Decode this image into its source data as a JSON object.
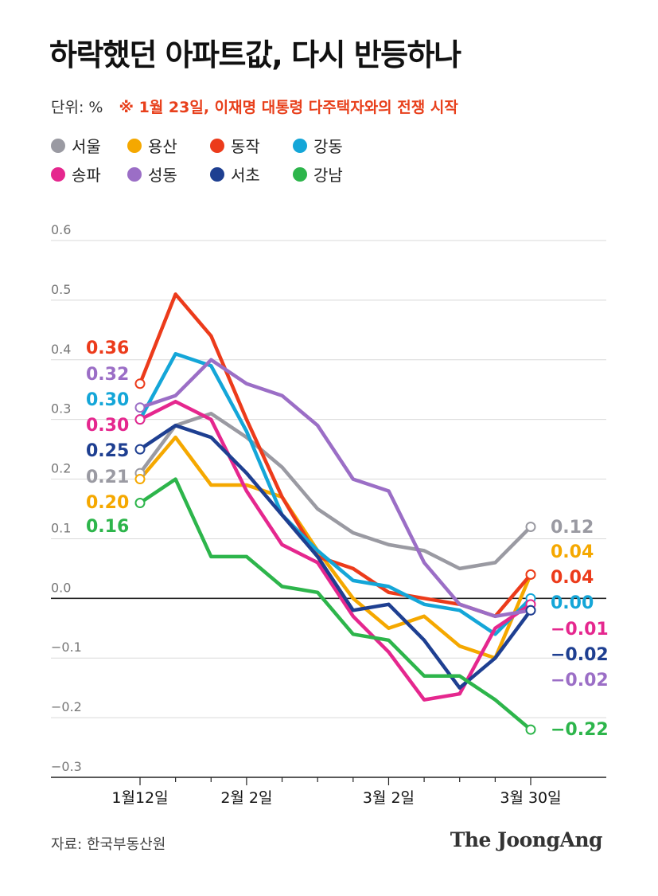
{
  "title": "하락했던 아파트값, 다시 반등하나",
  "unit": "단위: %",
  "note": "※ 1월 23일, 이재명 대통령 다주택자와의 전쟁 시작",
  "source": "자료: 한국부동산원",
  "brand": "The JoongAng",
  "chart_data": {
    "type": "line",
    "ylim": [
      -0.3,
      0.6
    ],
    "yticks": [
      "0.6",
      "0.5",
      "0.4",
      "0.3",
      "0.2",
      "0.1",
      "0.0",
      "−0.1",
      "−0.2",
      "−0.3"
    ],
    "x": [
      0,
      1,
      2,
      3,
      4,
      5,
      6,
      7,
      8,
      9,
      10,
      11
    ],
    "xlabels": [
      {
        "index": 0,
        "label": "1월12일"
      },
      {
        "index": 3,
        "label": "2월 2일"
      },
      {
        "index": 7,
        "label": "3월 2일"
      },
      {
        "index": 11,
        "label": "3월 30일"
      }
    ],
    "grid": true,
    "series": [
      {
        "name": "서울",
        "color": "#9a9aa2",
        "values": [
          0.21,
          0.29,
          0.31,
          0.27,
          0.22,
          0.15,
          0.11,
          0.09,
          0.08,
          0.05,
          0.06,
          0.12
        ],
        "start_label": "0.21",
        "end_label": "0.12"
      },
      {
        "name": "용산",
        "color": "#f5a800",
        "values": [
          0.2,
          0.27,
          0.19,
          0.19,
          0.17,
          0.08,
          0.0,
          -0.05,
          -0.03,
          -0.08,
          -0.1,
          0.04
        ],
        "start_label": "0.20",
        "end_label": "0.04"
      },
      {
        "name": "동작",
        "color": "#ec3b1b",
        "values": [
          0.36,
          0.51,
          0.44,
          0.3,
          0.17,
          0.07,
          0.05,
          0.01,
          0.0,
          -0.01,
          -0.03,
          0.04
        ],
        "start_label": "0.36",
        "end_label": "0.04"
      },
      {
        "name": "강동",
        "color": "#14a6d8",
        "values": [
          0.3,
          0.41,
          0.39,
          0.28,
          0.14,
          0.08,
          0.03,
          0.02,
          -0.01,
          -0.02,
          -0.06,
          0.0
        ],
        "start_label": "0.30",
        "end_label": "0.00"
      },
      {
        "name": "송파",
        "color": "#e5278e",
        "values": [
          0.3,
          0.33,
          0.3,
          0.18,
          0.09,
          0.06,
          -0.03,
          -0.09,
          -0.17,
          -0.16,
          -0.05,
          -0.01
        ],
        "start_label": "0.30",
        "end_label": "−0.01"
      },
      {
        "name": "성동",
        "color": "#9b6ec6",
        "values": [
          0.32,
          0.34,
          0.4,
          0.36,
          0.34,
          0.29,
          0.2,
          0.18,
          0.06,
          -0.01,
          -0.03,
          -0.02
        ],
        "start_label": "0.32",
        "end_label": "−0.02"
      },
      {
        "name": "서초",
        "color": "#1e3f91",
        "values": [
          0.25,
          0.29,
          0.27,
          0.21,
          0.14,
          0.07,
          -0.02,
          -0.01,
          -0.07,
          -0.15,
          -0.1,
          -0.02
        ],
        "start_label": "0.25",
        "end_label": "−0.02"
      },
      {
        "name": "강남",
        "color": "#2db54b",
        "values": [
          0.16,
          0.2,
          0.07,
          0.07,
          0.02,
          0.01,
          -0.06,
          -0.07,
          -0.13,
          -0.13,
          -0.17,
          -0.22
        ],
        "start_label": "0.16",
        "end_label": "−0.22"
      }
    ]
  }
}
